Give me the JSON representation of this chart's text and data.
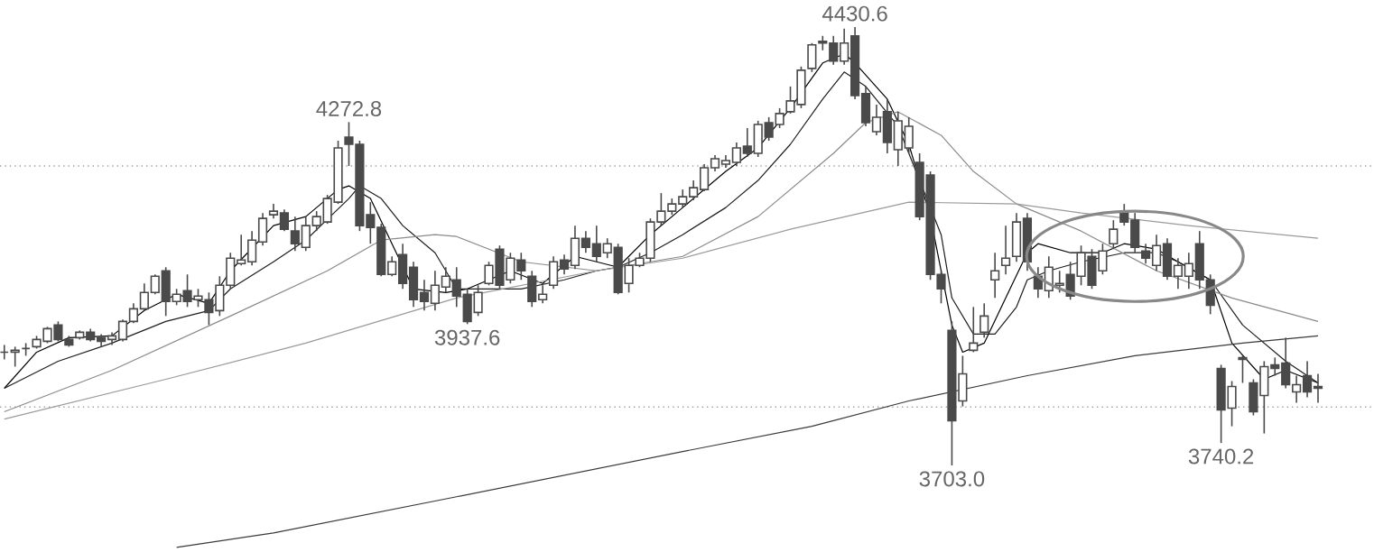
{
  "chart_data": {
    "type": "candlestick",
    "color": "#4a4a4a",
    "tick_labels": false,
    "categories": [
      null,
      null,
      null,
      null,
      null,
      null,
      null,
      null,
      null,
      null,
      null,
      null,
      null,
      null,
      null,
      null,
      null,
      null,
      null,
      null,
      null,
      null,
      null,
      null,
      null,
      null,
      null,
      null,
      null,
      null,
      null,
      null,
      null,
      null,
      null,
      null,
      null,
      null,
      null,
      null,
      null,
      null,
      null,
      null,
      null,
      null,
      null,
      null,
      null,
      null,
      null,
      null,
      null,
      null,
      null,
      null,
      null,
      null,
      null,
      null,
      null,
      null,
      null,
      null,
      null,
      null,
      null,
      null,
      null,
      null,
      null,
      null,
      null,
      null,
      null,
      null,
      null,
      null,
      null,
      null,
      null,
      null,
      null,
      null,
      null,
      null,
      null,
      null,
      null,
      null,
      null,
      null,
      null,
      null,
      null,
      null,
      null,
      null,
      null,
      null,
      null,
      null,
      null,
      null,
      null,
      null,
      null,
      null,
      null,
      null,
      null,
      null,
      null,
      null,
      null,
      null,
      null,
      null,
      null,
      null,
      null,
      null,
      null
    ],
    "ohlc": [
      [
        3891,
        3903,
        3879,
        3891
      ],
      [
        3891,
        3900,
        3867,
        3894
      ],
      [
        3897,
        3906,
        3885,
        3897
      ],
      [
        3900,
        3918,
        3897,
        3912
      ],
      [
        3909,
        3933,
        3906,
        3930
      ],
      [
        3936,
        3942,
        3909,
        3912
      ],
      [
        3912,
        3918,
        3900,
        3903
      ],
      [
        3915,
        3927,
        3912,
        3924
      ],
      [
        3924,
        3930,
        3909,
        3912
      ],
      [
        3915,
        3921,
        3900,
        3909
      ],
      [
        3912,
        3924,
        3903,
        3918
      ],
      [
        3912,
        3945,
        3909,
        3942
      ],
      [
        3942,
        3972,
        3939,
        3963
      ],
      [
        3963,
        4005,
        3960,
        3990
      ],
      [
        3990,
        4020,
        3987,
        4017
      ],
      [
        4026,
        4032,
        3951,
        3975
      ],
      [
        3975,
        3996,
        3969,
        3987
      ],
      [
        3993,
        4020,
        3966,
        3975
      ],
      [
        3978,
        3996,
        3966,
        3984
      ],
      [
        3978,
        3990,
        3936,
        3957
      ],
      [
        3960,
        4017,
        3951,
        4002
      ],
      [
        4002,
        4056,
        3996,
        4047
      ],
      [
        4038,
        4086,
        4035,
        4044
      ],
      [
        4041,
        4092,
        4035,
        4077
      ],
      [
        4074,
        4122,
        4068,
        4113
      ],
      [
        4119,
        4137,
        4113,
        4125
      ],
      [
        4122,
        4128,
        4092,
        4095
      ],
      [
        4092,
        4116,
        4059,
        4071
      ],
      [
        4065,
        4116,
        4059,
        4101
      ],
      [
        4101,
        4125,
        4092,
        4116
      ],
      [
        4107,
        4152,
        4104,
        4146
      ],
      [
        4140,
        4242,
        4137,
        4230
      ],
      [
        4248,
        4272.8,
        4200,
        4236
      ],
      [
        4236,
        4242,
        4092,
        4101
      ],
      [
        4119,
        4140,
        4071,
        4098
      ],
      [
        4098,
        4104,
        4017,
        4020
      ],
      [
        4020,
        4050,
        4017,
        4041
      ],
      [
        4053,
        4071,
        3996,
        4005
      ],
      [
        4032,
        4041,
        3966,
        3978
      ],
      [
        3990,
        4011,
        3960,
        3975
      ],
      [
        3972,
        4026,
        3960,
        4002
      ],
      [
        3999,
        4032,
        3990,
        4017
      ],
      [
        4011,
        4032,
        3966,
        3984
      ],
      [
        3987,
        3996,
        3937.6,
        3942
      ],
      [
        3957,
        4002,
        3951,
        3990
      ],
      [
        4005,
        4041,
        4002,
        4035
      ],
      [
        4062,
        4068,
        3996,
        4002
      ],
      [
        4011,
        4056,
        4005,
        4047
      ],
      [
        4044,
        4056,
        4011,
        4026
      ],
      [
        4017,
        4026,
        3966,
        3975
      ],
      [
        3978,
        4002,
        3972,
        3987
      ],
      [
        4002,
        4050,
        3996,
        4041
      ],
      [
        4044,
        4053,
        4020,
        4029
      ],
      [
        4035,
        4101,
        4029,
        4080
      ],
      [
        4080,
        4092,
        4056,
        4065
      ],
      [
        4071,
        4101,
        4041,
        4050
      ],
      [
        4056,
        4080,
        4047,
        4071
      ],
      [
        4065,
        4071,
        3987,
        3990
      ],
      [
        4005,
        4047,
        3990,
        4035
      ],
      [
        4035,
        4056,
        4032,
        4047
      ],
      [
        4047,
        4113,
        4041,
        4107
      ],
      [
        4107,
        4155,
        4101,
        4125
      ],
      [
        4125,
        4146,
        4119,
        4137
      ],
      [
        4137,
        4161,
        4131,
        4149
      ],
      [
        4149,
        4176,
        4143,
        4164
      ],
      [
        4161,
        4203,
        4158,
        4197
      ],
      [
        4197,
        4218,
        4191,
        4212
      ],
      [
        4203,
        4218,
        4197,
        4209
      ],
      [
        4206,
        4239,
        4200,
        4230
      ],
      [
        4233,
        4263,
        4215,
        4221
      ],
      [
        4221,
        4275,
        4215,
        4269
      ],
      [
        4272,
        4281,
        4242,
        4248
      ],
      [
        4269,
        4296,
        4263,
        4287
      ],
      [
        4290,
        4332,
        4287,
        4308
      ],
      [
        4302,
        4365,
        4296,
        4359
      ],
      [
        4362,
        4404,
        4356,
        4401
      ],
      [
        4407,
        4416,
        4392,
        4404
      ],
      [
        4404,
        4416,
        4368,
        4374
      ],
      [
        4374,
        4428,
        4368,
        4404
      ],
      [
        4416,
        4430.6,
        4311,
        4317
      ],
      [
        4320,
        4332,
        4266,
        4272
      ],
      [
        4257,
        4302,
        4251,
        4281
      ],
      [
        4290,
        4311,
        4221,
        4239
      ],
      [
        4227,
        4290,
        4200,
        4275
      ],
      [
        4230,
        4281,
        4221,
        4266
      ],
      [
        4206,
        4221,
        4110,
        4116
      ],
      [
        4185,
        4191,
        4011,
        4020
      ],
      [
        4020,
        4026,
        3972,
        3996
      ],
      [
        3927,
        3942,
        3703.0,
        3777
      ],
      [
        3810,
        3885,
        3801,
        3855
      ],
      [
        3894,
        3966,
        3891,
        3906
      ],
      [
        3924,
        3972,
        3915,
        3951
      ],
      [
        4011,
        4056,
        3981,
        4026
      ],
      [
        4035,
        4101,
        4020,
        4047
      ],
      [
        4050,
        4122,
        4041,
        4107
      ],
      [
        4113,
        4122,
        4026,
        4041
      ],
      [
        4017,
        4032,
        3981,
        3996
      ],
      [
        3993,
        4050,
        3981,
        4032
      ],
      [
        4002,
        4026,
        3990,
        4005
      ],
      [
        4020,
        4041,
        3978,
        3984
      ],
      [
        4017,
        4068,
        4002,
        4056
      ],
      [
        4050,
        4062,
        3996,
        4002
      ],
      [
        4026,
        4071,
        4020,
        4059
      ],
      [
        4071,
        4110,
        4062,
        4095
      ],
      [
        4125,
        4137,
        4101,
        4107
      ],
      [
        4110,
        4122,
        4056,
        4065
      ],
      [
        4059,
        4071,
        4038,
        4047
      ],
      [
        4035,
        4086,
        4026,
        4068
      ],
      [
        4071,
        4080,
        4011,
        4017
      ],
      [
        4017,
        4047,
        3996,
        4035
      ],
      [
        4017,
        4056,
        3996,
        4038
      ],
      [
        4071,
        4092,
        3996,
        4011
      ],
      [
        4011,
        4020,
        3954,
        3969
      ],
      [
        3864,
        3870,
        3740.2,
        3795
      ],
      [
        3798,
        3843,
        3768,
        3834
      ],
      [
        3882,
        3885,
        3840,
        3879
      ],
      [
        3840,
        3846,
        3786,
        3792
      ],
      [
        3819,
        3876,
        3756,
        3867
      ],
      [
        3870,
        3882,
        3852,
        3864
      ],
      [
        3873,
        3915,
        3831,
        3837
      ],
      [
        3825,
        3852,
        3807,
        3837
      ],
      [
        3852,
        3876,
        3816,
        3825
      ],
      [
        3834,
        3855,
        3807,
        3831
      ]
    ],
    "series": [
      {
        "type": "line",
        "color": "#000000",
        "values": [
          3831,
          null,
          null,
          3891,
          null,
          null,
          3915,
          null,
          null,
          null,
          3918,
          null,
          null,
          3960,
          null,
          null,
          3987,
          null,
          null,
          3972,
          null,
          4026,
          null,
          null,
          null,
          4101,
          null,
          null,
          4116,
          null,
          null,
          4161,
          4167,
          null,
          4146,
          null,
          4071,
          null,
          3996,
          null,
          null,
          3990,
          null,
          3996,
          null,
          null,
          null,
          4026,
          null,
          null,
          4005,
          null,
          null,
          4050,
          null,
          null,
          null,
          4032,
          null,
          null,
          4086,
          null,
          null,
          4131,
          null,
          null,
          null,
          4191,
          null,
          null,
          4230,
          null,
          null,
          4296,
          null,
          null,
          4371,
          null,
          4386,
          4371,
          null,
          null,
          4311,
          null,
          4236,
          null,
          4116,
          null,
          3936,
          3891,
          null,
          3906,
          null,
          3981,
          null,
          4056,
          4071,
          null,
          null,
          4056,
          null,
          null,
          4056,
          null,
          4071,
          null,
          null,
          4062,
          null,
          4041,
          null,
          null,
          4011,
          null,
          3906,
          null,
          null,
          3846,
          null,
          3861,
          null,
          null,
          3840
        ]
      },
      {
        "type": "line",
        "color": "#1e1e1e",
        "values": [
          3831,
          null,
          null,
          null,
          null,
          3876,
          null,
          null,
          null,
          null,
          3906,
          null,
          null,
          null,
          null,
          3942,
          null,
          null,
          null,
          3960,
          null,
          3996,
          null,
          null,
          null,
          4041,
          null,
          null,
          4077,
          null,
          null,
          null,
          4146,
          4167,
          null,
          4146,
          null,
          4101,
          null,
          null,
          4056,
          null,
          3996,
          null,
          null,
          3996,
          null,
          null,
          3996,
          null,
          null,
          null,
          4011,
          null,
          null,
          4026,
          null,
          4032,
          null,
          null,
          4056,
          null,
          null,
          4086,
          null,
          null,
          null,
          4131,
          null,
          null,
          4176,
          null,
          null,
          4236,
          null,
          null,
          4311,
          null,
          4356,
          null,
          4332,
          null,
          null,
          4266,
          null,
          4176,
          null,
          4086,
          3981,
          null,
          3921,
          null,
          3921,
          null,
          3966,
          4011,
          null,
          4026,
          null,
          null,
          4041,
          null,
          null,
          null,
          4056,
          null,
          null,
          4056,
          null,
          4041,
          null,
          null,
          4011,
          null,
          null,
          3936,
          null,
          null,
          null,
          3876,
          null,
          null,
          3840
        ]
      },
      {
        "type": "line",
        "color": "#8a8a8a",
        "values": [
          3792,
          null,
          null,
          null,
          null,
          null,
          null,
          null,
          null,
          null,
          3861,
          null,
          null,
          null,
          null,
          null,
          null,
          null,
          null,
          null,
          null,
          3951,
          null,
          null,
          null,
          null,
          null,
          null,
          null,
          null,
          4026,
          null,
          null,
          null,
          null,
          4077,
          null,
          null,
          null,
          null,
          4086,
          null,
          4083,
          null,
          null,
          null,
          null,
          null,
          4041,
          null,
          null,
          null,
          null,
          null,
          null,
          4026,
          null,
          null,
          null,
          null,
          null,
          null,
          null,
          4050,
          null,
          null,
          null,
          null,
          null,
          null,
          4116,
          null,
          null,
          null,
          null,
          null,
          null,
          4221,
          null,
          null,
          4272,
          null,
          null,
          4290,
          null,
          null,
          null,
          4251,
          null,
          null,
          4191,
          null,
          null,
          null,
          4137,
          null,
          null,
          null,
          null,
          null,
          4092,
          null,
          null,
          null,
          null,
          null,
          null,
          4026,
          null,
          null,
          null,
          null,
          null,
          null,
          3981,
          null,
          null,
          null,
          null,
          null,
          null,
          null,
          3942
        ]
      },
      {
        "type": "line",
        "color": "#9a9a9a",
        "values": [
          3780,
          null,
          null,
          null,
          null,
          null,
          null,
          null,
          null,
          null,
          null,
          null,
          null,
          null,
          null,
          3846,
          null,
          null,
          null,
          null,
          null,
          null,
          null,
          null,
          null,
          null,
          null,
          null,
          3906,
          null,
          null,
          null,
          null,
          null,
          null,
          null,
          null,
          null,
          null,
          null,
          null,
          null,
          3981,
          null,
          null,
          null,
          null,
          null,
          null,
          null,
          null,
          null,
          null,
          null,
          null,
          4026,
          null,
          null,
          null,
          null,
          null,
          null,
          null,
          4047,
          null,
          null,
          null,
          null,
          null,
          null,
          null,
          null,
          null,
          4095,
          null,
          null,
          null,
          null,
          null,
          null,
          null,
          null,
          null,
          null,
          4140,
          null,
          null,
          null,
          null,
          null,
          null,
          null,
          null,
          null,
          4137,
          null,
          null,
          null,
          null,
          null,
          4122,
          null,
          null,
          null,
          null,
          null,
          null,
          null,
          null,
          null,
          4101,
          null,
          null,
          null,
          null,
          null,
          null,
          null,
          null,
          null,
          null,
          null,
          4080
        ]
      },
      {
        "type": "line",
        "color": "#3a3a3a",
        "values": [
          null,
          null,
          null,
          null,
          null,
          null,
          null,
          null,
          null,
          null,
          null,
          null,
          null,
          null,
          null,
          null,
          3567,
          null,
          null,
          null,
          null,
          null,
          null,
          null,
          null,
          3591,
          null,
          null,
          null,
          null,
          null,
          null,
          null,
          null,
          null,
          null,
          null,
          null,
          null,
          null,
          null,
          null,
          3651,
          null,
          null,
          null,
          null,
          null,
          null,
          null,
          null,
          null,
          null,
          null,
          null,
          null,
          null,
          null,
          null,
          null,
          null,
          null,
          null,
          3726,
          null,
          null,
          null,
          null,
          null,
          null,
          null,
          null,
          null,
          null,
          null,
          3768,
          null,
          null,
          null,
          null,
          null,
          null,
          null,
          null,
          3810,
          null,
          null,
          null,
          null,
          null,
          null,
          null,
          null,
          null,
          null,
          3852,
          null,
          null,
          null,
          null,
          null,
          null,
          null,
          null,
          null,
          3885,
          null,
          null,
          null,
          null,
          null,
          null,
          null,
          null,
          null,
          3906,
          null,
          null,
          null,
          null,
          null,
          null,
          3918
        ]
      }
    ],
    "ref_lines": [
      {
        "axis": "y",
        "value": 4200,
        "color": "#a0a0a0",
        "line_style": "dotted"
      },
      {
        "axis": "y",
        "value": 3800,
        "color": "#a0a0a0",
        "line_style": "dotted"
      }
    ],
    "annotations": [
      {
        "text": "4272.8",
        "y": 4272.8
      },
      {
        "text": "4430.6",
        "y": 4430.6
      },
      {
        "text": "3937.6",
        "y": 3937.6
      },
      {
        "text": "3703.0",
        "y": 3703.0
      },
      {
        "text": "3740.2",
        "y": 3740.2
      }
    ]
  }
}
